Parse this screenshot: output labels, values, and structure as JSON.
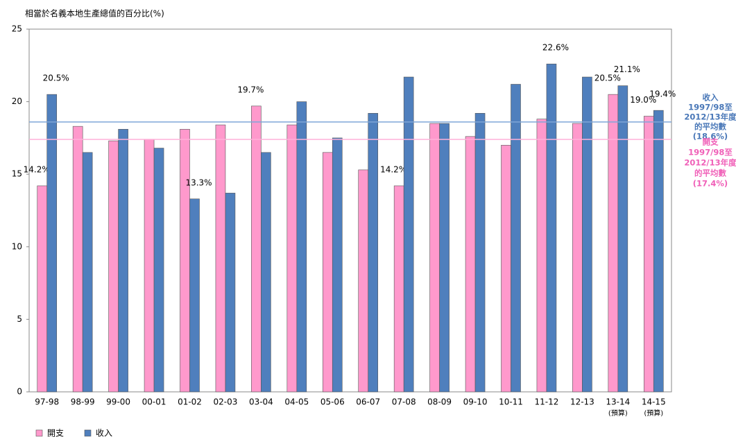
{
  "chart_data": {
    "type": "bar",
    "title": "相當於名義本地生產總值的百分比(%)",
    "categories": [
      "97-98",
      "98-99",
      "99-00",
      "00-01",
      "01-02",
      "02-03",
      "03-04",
      "04-05",
      "05-06",
      "06-07",
      "07-08",
      "08-09",
      "09-10",
      "10-11",
      "11-12",
      "12-13",
      "13-14",
      "14-15"
    ],
    "category_sublabels": [
      null,
      null,
      null,
      null,
      null,
      null,
      null,
      null,
      null,
      null,
      null,
      null,
      null,
      null,
      null,
      null,
      "(預算)",
      "(預算)"
    ],
    "series": [
      {
        "name": "開支",
        "color": "#ff99cc",
        "values": [
          14.2,
          18.3,
          17.3,
          17.4,
          18.1,
          18.4,
          19.7,
          18.4,
          16.5,
          15.3,
          14.2,
          18.5,
          17.6,
          17.0,
          18.8,
          18.5,
          20.5,
          19.0
        ],
        "value_labels": [
          "14.2%",
          null,
          null,
          null,
          null,
          null,
          "19.7%",
          null,
          null,
          null,
          "14.2%",
          null,
          null,
          null,
          null,
          null,
          "20.5%",
          "19.0%"
        ]
      },
      {
        "name": "收入",
        "color": "#4f7fbd",
        "values": [
          20.5,
          16.5,
          18.1,
          16.8,
          13.3,
          13.7,
          16.5,
          20.0,
          17.5,
          19.2,
          21.7,
          18.5,
          19.2,
          21.2,
          22.6,
          21.7,
          21.1,
          19.4
        ],
        "value_labels": [
          "20.5%",
          null,
          null,
          null,
          "13.3%",
          null,
          null,
          null,
          null,
          null,
          null,
          null,
          null,
          null,
          "22.6%",
          null,
          "21.1%",
          "19.4%"
        ]
      }
    ],
    "reference_lines": [
      {
        "value": 18.6,
        "color": "#7fa6d8",
        "text_color": "#4a78b8",
        "label": [
          "收入",
          "1997/98至",
          "2012/13年度",
          "的平均數",
          "(18.6%)"
        ]
      },
      {
        "value": 17.4,
        "color": "#ffb0d8",
        "text_color": "#f060b8",
        "label": [
          "開支",
          "1997/98至",
          "2012/13年度",
          "的平均數",
          "(17.4%)"
        ]
      }
    ],
    "ylim": [
      0,
      25
    ],
    "yticks": [
      0,
      5,
      10,
      15,
      20,
      25
    ],
    "grid": false,
    "legend": "bottom-left"
  }
}
